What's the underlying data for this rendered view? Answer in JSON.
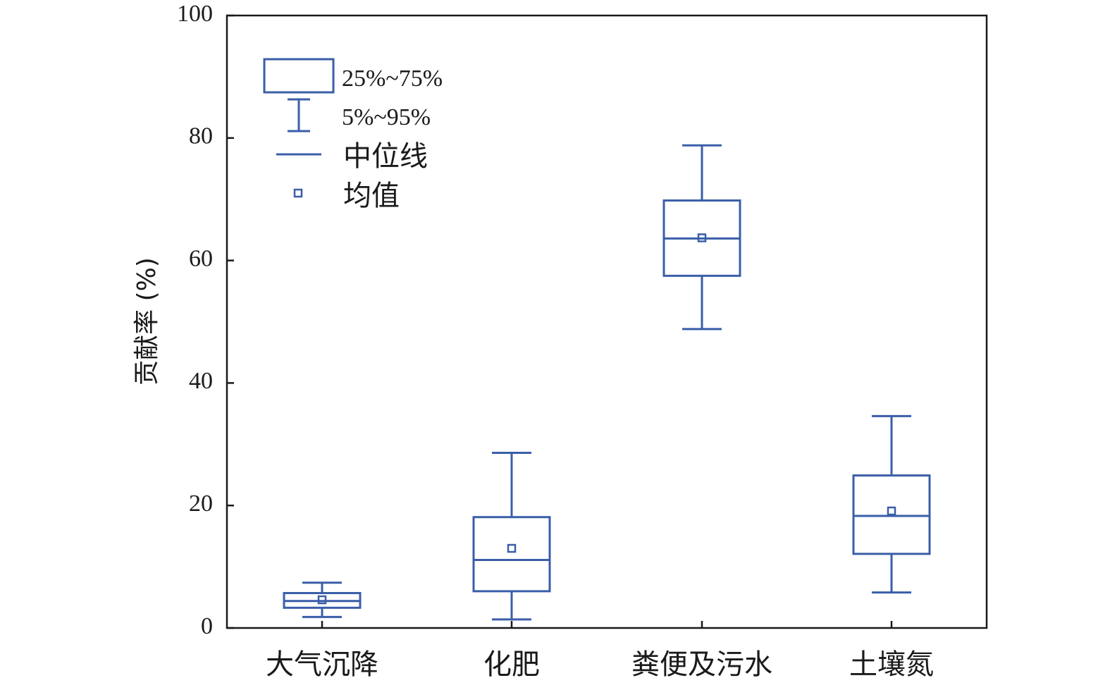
{
  "chart_data": {
    "type": "box",
    "ylabel": "贡献率 (%)",
    "ylim": [
      0,
      100
    ],
    "yticks": [
      "0",
      "20",
      "40",
      "60",
      "80",
      "100"
    ],
    "categories": [
      "大气沉降",
      "化肥",
      "粪便及污水",
      "土壤氮"
    ],
    "boxes": [
      {
        "category": "大气沉降",
        "p5": 1.8,
        "q1": 3.3,
        "median": 4.4,
        "q3": 5.7,
        "p95": 7.4,
        "mean": 4.6
      },
      {
        "category": "化肥",
        "p5": 1.4,
        "q1": 6.0,
        "median": 11.1,
        "q3": 18.1,
        "p95": 28.6,
        "mean": 13.0
      },
      {
        "category": "粪便及污水",
        "p5": 48.8,
        "q1": 57.5,
        "median": 63.6,
        "q3": 69.8,
        "p95": 78.8,
        "mean": 63.7
      },
      {
        "category": "土壤氮",
        "p5": 5.8,
        "q1": 12.1,
        "median": 18.3,
        "q3": 24.9,
        "p95": 34.6,
        "mean": 19.1
      }
    ],
    "legend": {
      "placement": "top-left",
      "items": [
        {
          "key": "box",
          "label": "25%~75%"
        },
        {
          "key": "whisker",
          "label": "5%~95%"
        },
        {
          "key": "median",
          "label": "中位线"
        },
        {
          "key": "mean",
          "label": "均值"
        }
      ]
    },
    "colors": {
      "series": "#3a5ea8",
      "axis": "#1a1a1a"
    }
  }
}
